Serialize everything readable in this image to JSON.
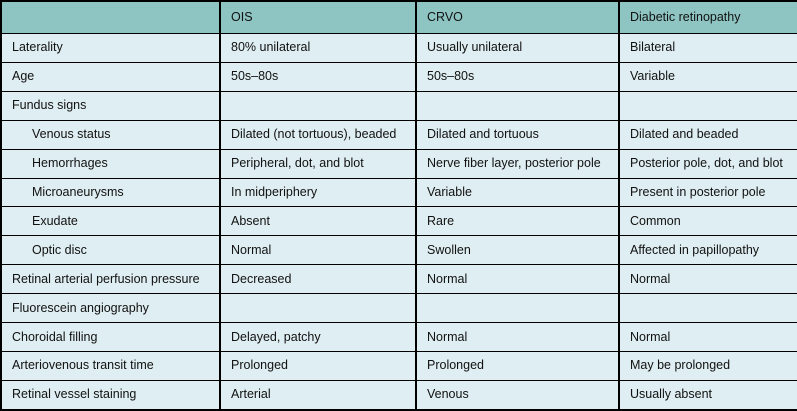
{
  "colors": {
    "header_bg": "#8ec5c3",
    "row_bg": "#dfeef2",
    "border": "#000000",
    "text": "#111111"
  },
  "table": {
    "columns": [
      "",
      "OIS",
      "CRVO",
      "Diabetic retinopathy"
    ],
    "rows": [
      {
        "label": "Laterality",
        "indent": false,
        "values": [
          "80% unilateral",
          "Usually unilateral",
          "Bilateral"
        ]
      },
      {
        "label": "Age",
        "indent": false,
        "values": [
          "50s–80s",
          "50s–80s",
          "Variable"
        ]
      },
      {
        "label": "Fundus signs",
        "indent": false,
        "values": [
          "",
          "",
          ""
        ]
      },
      {
        "label": "Venous status",
        "indent": true,
        "values": [
          "Dilated (not tortuous), beaded",
          "Dilated and tortuous",
          "Dilated and beaded"
        ]
      },
      {
        "label": "Hemorrhages",
        "indent": true,
        "values": [
          "Peripheral, dot, and blot",
          "Nerve fiber layer, posterior pole",
          "Posterior pole, dot, and blot"
        ]
      },
      {
        "label": "Microaneurysms",
        "indent": true,
        "values": [
          "In midperiphery",
          "Variable",
          "Present in posterior pole"
        ]
      },
      {
        "label": "Exudate",
        "indent": true,
        "values": [
          "Absent",
          "Rare",
          "Common"
        ]
      },
      {
        "label": "Optic disc",
        "indent": true,
        "values": [
          "Normal",
          "Swollen",
          "Affected in papillopathy"
        ]
      },
      {
        "label": "Retinal arterial perfusion pressure",
        "indent": false,
        "values": [
          "Decreased",
          "Normal",
          "Normal"
        ]
      },
      {
        "label": "Fluorescein angiography",
        "indent": false,
        "values": [
          "",
          "",
          ""
        ]
      },
      {
        "label": "Choroidal filling",
        "indent": false,
        "values": [
          "Delayed, patchy",
          "Normal",
          "Normal"
        ]
      },
      {
        "label": "Arteriovenous transit time",
        "indent": false,
        "values": [
          "Prolonged",
          "Prolonged",
          "May be prolonged"
        ]
      },
      {
        "label": "Retinal vessel staining",
        "indent": false,
        "values": [
          "Arterial",
          "Venous",
          "Usually absent"
        ]
      }
    ]
  }
}
